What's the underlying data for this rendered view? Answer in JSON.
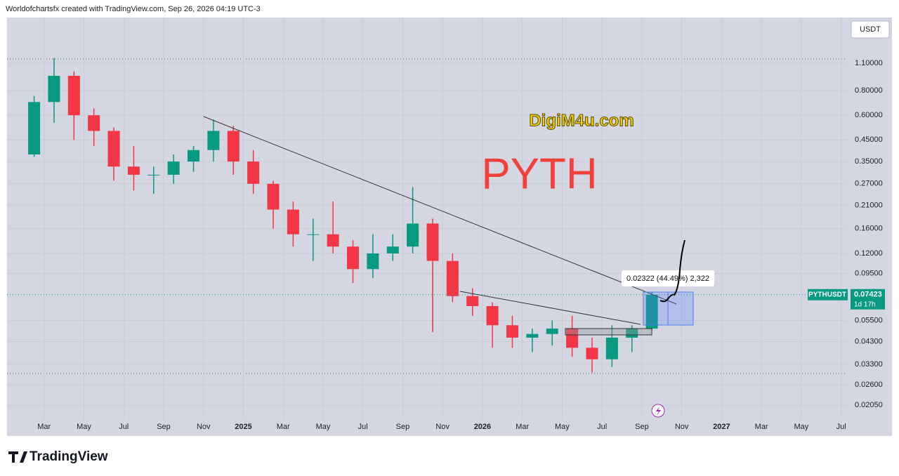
{
  "header": "Worldofchartsfx created with TradingView.com, Sep 26, 2026 04:19 UTC-3",
  "currency_button": "USDT",
  "watermark": "DigiM4u.com",
  "symbol_title": "PYTH",
  "measure_label": "0.02322 (44.49%) 2,322",
  "footer_logo": "TradingView",
  "chart_data": {
    "type": "candlestick",
    "log_scale": true,
    "up_color": "#089981",
    "down_color": "#f23645",
    "ylim": [
      0.01742,
      1.872
    ],
    "yticks": [
      {
        "value": 1.1,
        "label": "1.10000"
      },
      {
        "value": 0.8,
        "label": "0.80000"
      },
      {
        "value": 0.6,
        "label": "0.60000"
      },
      {
        "value": 0.45,
        "label": "0.45000"
      },
      {
        "value": 0.35,
        "label": "0.35000"
      },
      {
        "value": 0.27,
        "label": "0.27000"
      },
      {
        "value": 0.21,
        "label": "0.21000"
      },
      {
        "value": 0.16,
        "label": "0.16000"
      },
      {
        "value": 0.12,
        "label": "0.12000"
      },
      {
        "value": 0.095,
        "label": "0.09500"
      },
      {
        "value": 0.055,
        "label": "0.05500"
      },
      {
        "value": 0.043,
        "label": "0.04300"
      },
      {
        "value": 0.033,
        "label": "0.03300"
      },
      {
        "value": 0.026,
        "label": "0.02600"
      },
      {
        "value": 0.0205,
        "label": "0.02050"
      }
    ],
    "xlim": [
      "2024-01",
      "2027-08"
    ],
    "xticks": [
      {
        "value": "2024-03",
        "label": "Mar"
      },
      {
        "value": "2024-05",
        "label": "May"
      },
      {
        "value": "2024-07",
        "label": "Jul"
      },
      {
        "value": "2024-09",
        "label": "Sep"
      },
      {
        "value": "2024-11",
        "label": "Nov"
      },
      {
        "value": "2025-01",
        "label": "2025"
      },
      {
        "value": "2025-03",
        "label": "Mar"
      },
      {
        "value": "2025-05",
        "label": "May"
      },
      {
        "value": "2025-07",
        "label": "Jul"
      },
      {
        "value": "2025-09",
        "label": "Sep"
      },
      {
        "value": "2025-11",
        "label": "Nov"
      },
      {
        "value": "2026-01",
        "label": "2026"
      },
      {
        "value": "2026-03",
        "label": "Mar"
      },
      {
        "value": "2026-05",
        "label": "May"
      },
      {
        "value": "2026-07",
        "label": "Jul"
      },
      {
        "value": "2026-09",
        "label": "Sep"
      },
      {
        "value": "2026-11",
        "label": "Nov"
      },
      {
        "value": "2027-01",
        "label": "2027"
      },
      {
        "value": "2027-03",
        "label": "Mar"
      },
      {
        "value": "2027-05",
        "label": "May"
      },
      {
        "value": "2027-07",
        "label": "Jul"
      }
    ],
    "x": [
      "2024-02",
      "2024-03",
      "2024-04",
      "2024-05",
      "2024-06",
      "2024-07",
      "2024-08",
      "2024-09",
      "2024-10",
      "2024-11",
      "2024-12",
      "2025-01",
      "2025-02",
      "2025-03",
      "2025-04",
      "2025-05",
      "2025-06",
      "2025-07",
      "2025-08",
      "2025-09",
      "2025-10",
      "2025-11",
      "2025-12",
      "2026-01",
      "2026-02",
      "2026-03",
      "2026-04",
      "2026-05",
      "2026-06",
      "2026-07",
      "2026-08",
      "2026-09"
    ],
    "open": [
      0.38,
      0.7,
      0.95,
      0.6,
      0.5,
      0.33,
      0.3,
      0.3,
      0.35,
      0.4,
      0.5,
      0.35,
      0.27,
      0.2,
      0.15,
      0.15,
      0.13,
      0.1,
      0.12,
      0.13,
      0.17,
      0.11,
      0.073,
      0.065,
      0.052,
      0.045,
      0.047,
      0.05,
      0.04,
      0.035,
      0.045,
      0.05
    ],
    "high": [
      0.75,
      1.17,
      1.0,
      0.65,
      0.52,
      0.42,
      0.33,
      0.38,
      0.42,
      0.57,
      0.53,
      0.4,
      0.28,
      0.22,
      0.18,
      0.22,
      0.14,
      0.15,
      0.15,
      0.26,
      0.18,
      0.12,
      0.08,
      0.068,
      0.058,
      0.05,
      0.055,
      0.058,
      0.045,
      0.052,
      0.052,
      0.077
    ],
    "low": [
      0.37,
      0.55,
      0.45,
      0.42,
      0.28,
      0.25,
      0.24,
      0.27,
      0.31,
      0.35,
      0.3,
      0.24,
      0.16,
      0.13,
      0.11,
      0.12,
      0.085,
      0.09,
      0.11,
      0.12,
      0.048,
      0.068,
      0.058,
      0.04,
      0.04,
      0.038,
      0.041,
      0.036,
      0.03,
      0.032,
      0.038,
      0.049
    ],
    "close": [
      0.7,
      0.95,
      0.6,
      0.5,
      0.33,
      0.3,
      0.3,
      0.35,
      0.4,
      0.5,
      0.35,
      0.27,
      0.2,
      0.15,
      0.15,
      0.13,
      0.1,
      0.12,
      0.13,
      0.17,
      0.11,
      0.073,
      0.065,
      0.052,
      0.045,
      0.047,
      0.05,
      0.04,
      0.035,
      0.045,
      0.05,
      0.0742
    ],
    "last_price": {
      "symbol": "PYTHUSDT",
      "value": 0.07423,
      "countdown": "1d 17h"
    }
  }
}
